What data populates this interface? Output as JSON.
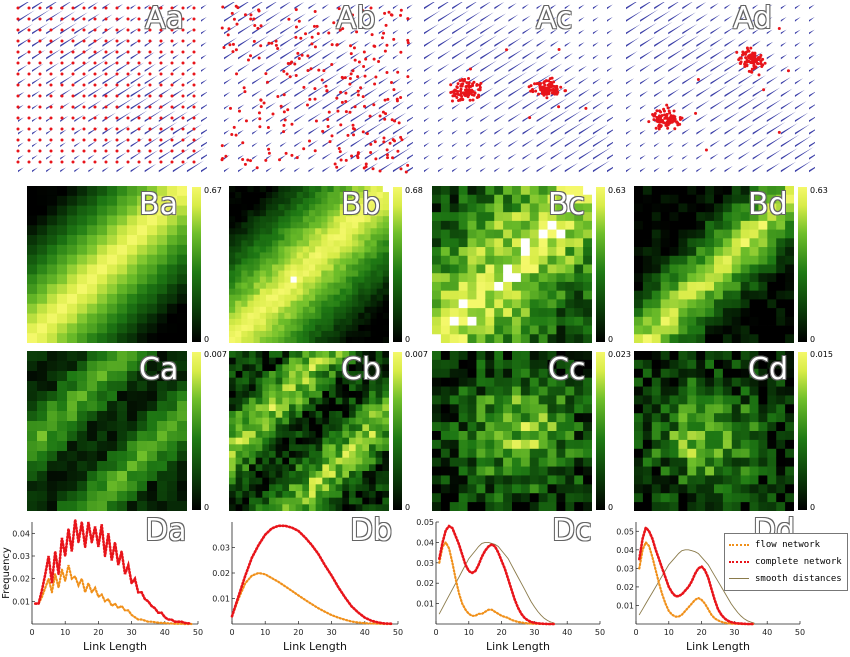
{
  "panel_labels": {
    "row_a": [
      "Aa",
      "Ab",
      "Ac",
      "Ad"
    ],
    "row_b": [
      "Ba",
      "Bb",
      "Bc",
      "Bd"
    ],
    "row_c": [
      "Ca",
      "Cb",
      "Cc",
      "Cd"
    ],
    "row_d": [
      "Da",
      "Db",
      "Dc",
      "Dd"
    ]
  },
  "colorbars": {
    "row_b": [
      {
        "max": "0.67",
        "min": "0"
      },
      {
        "max": "0.68",
        "min": "0"
      },
      {
        "max": "0.63",
        "min": "0"
      },
      {
        "max": "0.63",
        "min": "0"
      }
    ],
    "row_c": [
      {
        "max": "0.007",
        "min": "0"
      },
      {
        "max": "0.007",
        "min": "0"
      },
      {
        "max": "0.023",
        "min": "0"
      },
      {
        "max": "0.015",
        "min": "0"
      }
    ]
  },
  "colors": {
    "arrows": "#3b3fa8",
    "points": "#e8141a",
    "flow": "#f0901a",
    "complete": "#e8141a",
    "smooth": "#8a7a4a",
    "heat_low": "#000000",
    "heat_high": "#f4f86a"
  },
  "legend": {
    "flow": "flow network",
    "complete": "complete network",
    "smooth": "smooth distances"
  },
  "chart_data": [
    {
      "type": "line",
      "panel": "Da",
      "xlabel": "Link Length",
      "ylabel": "Frequency",
      "xlim": [
        0,
        50
      ],
      "ylim": [
        0,
        0.045
      ],
      "xticks": [
        "0",
        "10",
        "20",
        "30",
        "40",
        "50"
      ],
      "yticks": [
        "0.01",
        "0.02",
        "0.03",
        "0.04"
      ],
      "x": [
        1,
        2,
        3,
        4,
        5,
        6,
        7,
        8,
        9,
        10,
        11,
        12,
        13,
        14,
        15,
        16,
        17,
        18,
        19,
        20,
        21,
        22,
        23,
        24,
        25,
        26,
        27,
        28,
        29,
        30,
        31,
        32,
        33,
        34,
        35,
        36,
        37,
        38,
        39,
        40,
        41,
        42,
        43,
        44,
        45,
        46,
        47,
        48
      ],
      "series": [
        {
          "name": "complete network",
          "values": [
            0.009,
            0.009,
            0.015,
            0.022,
            0.03,
            0.018,
            0.032,
            0.022,
            0.038,
            0.03,
            0.042,
            0.032,
            0.046,
            0.036,
            0.045,
            0.034,
            0.045,
            0.036,
            0.043,
            0.034,
            0.044,
            0.03,
            0.04,
            0.028,
            0.036,
            0.026,
            0.032,
            0.022,
            0.026,
            0.018,
            0.02,
            0.014,
            0.014,
            0.011,
            0.01,
            0.008,
            0.007,
            0.005,
            0.005,
            0.003,
            0.002,
            0.002,
            0.001,
            0.001,
            0.001,
            0.0005,
            0.0003,
            0.0002
          ]
        },
        {
          "name": "flow network",
          "values": [
            0.009,
            0.009,
            0.012,
            0.016,
            0.02,
            0.014,
            0.022,
            0.016,
            0.024,
            0.019,
            0.026,
            0.02,
            0.021,
            0.017,
            0.02,
            0.014,
            0.018,
            0.014,
            0.016,
            0.012,
            0.013,
            0.01,
            0.011,
            0.008,
            0.009,
            0.007,
            0.008,
            0.006,
            0.006,
            0.004,
            0.003,
            0.002,
            0.002,
            0.0015,
            0.001,
            0.001,
            0.0008,
            0.0006,
            0.0005,
            0.0004,
            0.0003,
            0.0002,
            0.0001,
            0.0001,
            0.0001,
            0.0,
            0.0,
            0.0
          ]
        }
      ]
    },
    {
      "type": "line",
      "panel": "Db",
      "xlabel": "Link Length",
      "ylabel": "",
      "xlim": [
        0,
        50
      ],
      "ylim": [
        0,
        0.04
      ],
      "xticks": [
        "0",
        "10",
        "20",
        "30",
        "40",
        "50"
      ],
      "yticks": [
        "0.01",
        "0.02",
        "0.03"
      ],
      "x": [
        0,
        2,
        4,
        6,
        8,
        10,
        12,
        14,
        16,
        18,
        20,
        22,
        24,
        26,
        28,
        30,
        32,
        34,
        36,
        38,
        40,
        42,
        44,
        46,
        48
      ],
      "series": [
        {
          "name": "complete network",
          "values": [
            0.003,
            0.011,
            0.019,
            0.026,
            0.031,
            0.035,
            0.0375,
            0.0385,
            0.0385,
            0.0378,
            0.0365,
            0.034,
            0.031,
            0.0275,
            0.023,
            0.019,
            0.0145,
            0.0105,
            0.007,
            0.0045,
            0.0025,
            0.0013,
            0.0006,
            0.0002,
            0.0001
          ]
        },
        {
          "name": "flow network",
          "values": [
            0.003,
            0.01,
            0.016,
            0.019,
            0.02,
            0.0195,
            0.018,
            0.0165,
            0.0148,
            0.013,
            0.0112,
            0.0095,
            0.0078,
            0.0062,
            0.0048,
            0.0035,
            0.0025,
            0.0017,
            0.001,
            0.0006,
            0.0003,
            0.0002,
            0.0001,
            0.0,
            0.0
          ]
        }
      ]
    },
    {
      "type": "line",
      "panel": "Dc",
      "xlabel": "Link Length",
      "ylabel": "",
      "xlim": [
        0,
        50
      ],
      "ylim": [
        0,
        0.05
      ],
      "xticks": [
        "0",
        "10",
        "20",
        "30",
        "40",
        "50"
      ],
      "yticks": [
        "0.01",
        "0.02",
        "0.03",
        "0.04",
        "0.05"
      ],
      "x": [
        1,
        2,
        3,
        4,
        5,
        6,
        7,
        8,
        9,
        10,
        11,
        12,
        13,
        14,
        15,
        16,
        17,
        18,
        19,
        20,
        21,
        22,
        23,
        24,
        25,
        26,
        27,
        28,
        29,
        30,
        31,
        32,
        33,
        34,
        35,
        36
      ],
      "series": [
        {
          "name": "complete network",
          "values": [
            0.032,
            0.04,
            0.046,
            0.048,
            0.047,
            0.043,
            0.039,
            0.034,
            0.029,
            0.026,
            0.025,
            0.026,
            0.029,
            0.033,
            0.036,
            0.038,
            0.039,
            0.038,
            0.035,
            0.031,
            0.027,
            0.022,
            0.017,
            0.012,
            0.008,
            0.005,
            0.003,
            0.0018,
            0.001,
            0.0006,
            0.0003,
            0.0002,
            0.0001,
            0.0,
            0.0,
            0.0
          ]
        },
        {
          "name": "flow network",
          "values": [
            0.03,
            0.038,
            0.04,
            0.037,
            0.03,
            0.022,
            0.015,
            0.01,
            0.007,
            0.005,
            0.004,
            0.004,
            0.005,
            0.005,
            0.006,
            0.007,
            0.007,
            0.006,
            0.005,
            0.004,
            0.0035,
            0.003,
            0.002,
            0.0015,
            0.001,
            0.0008,
            0.0005,
            0.0003,
            0.0002,
            0.0001,
            0.0001,
            0.0,
            0.0,
            0.0,
            0.0,
            0.0
          ]
        },
        {
          "name": "smooth distances",
          "values": [
            0.005,
            0.008,
            0.011,
            0.014,
            0.017,
            0.02,
            0.023,
            0.026,
            0.029,
            0.032,
            0.034,
            0.036,
            0.038,
            0.0395,
            0.04,
            0.04,
            0.0395,
            0.039,
            0.038,
            0.036,
            0.034,
            0.032,
            0.029,
            0.026,
            0.023,
            0.02,
            0.017,
            0.014,
            0.011,
            0.0085,
            0.0062,
            0.0043,
            0.0028,
            0.0017,
            0.001,
            0.0005
          ]
        }
      ]
    },
    {
      "type": "line",
      "panel": "Dd",
      "xlabel": "Link Length",
      "ylabel": "",
      "xlim": [
        0,
        50
      ],
      "ylim": [
        0,
        0.055
      ],
      "xticks": [
        "0",
        "10",
        "20",
        "30",
        "40",
        "50"
      ],
      "yticks": [
        "0.01",
        "0.02",
        "0.03",
        "0.04",
        "0.05"
      ],
      "x": [
        1,
        2,
        3,
        4,
        5,
        6,
        7,
        8,
        9,
        10,
        11,
        12,
        13,
        14,
        15,
        16,
        17,
        18,
        19,
        20,
        21,
        22,
        23,
        24,
        25,
        26,
        27,
        28,
        29,
        30,
        31,
        32,
        33,
        34,
        35,
        36
      ],
      "series": [
        {
          "name": "complete network",
          "values": [
            0.035,
            0.046,
            0.052,
            0.05,
            0.046,
            0.04,
            0.035,
            0.03,
            0.025,
            0.02,
            0.017,
            0.015,
            0.015,
            0.016,
            0.018,
            0.02,
            0.023,
            0.027,
            0.03,
            0.031,
            0.029,
            0.025,
            0.019,
            0.013,
            0.008,
            0.005,
            0.003,
            0.0018,
            0.001,
            0.0006,
            0.0003,
            0.0002,
            0.0001,
            0.0,
            0.0,
            0.0
          ]
        },
        {
          "name": "flow network",
          "values": [
            0.03,
            0.04,
            0.044,
            0.042,
            0.036,
            0.029,
            0.022,
            0.016,
            0.011,
            0.007,
            0.005,
            0.004,
            0.004,
            0.005,
            0.007,
            0.009,
            0.011,
            0.013,
            0.014,
            0.013,
            0.011,
            0.008,
            0.005,
            0.003,
            0.002,
            0.0012,
            0.0007,
            0.0004,
            0.0002,
            0.0001,
            0.0001,
            0.0,
            0.0,
            0.0,
            0.0,
            0.0
          ]
        },
        {
          "name": "smooth distances",
          "values": [
            0.005,
            0.008,
            0.011,
            0.014,
            0.017,
            0.02,
            0.023,
            0.026,
            0.029,
            0.032,
            0.034,
            0.036,
            0.038,
            0.0395,
            0.04,
            0.04,
            0.0395,
            0.039,
            0.038,
            0.036,
            0.034,
            0.032,
            0.029,
            0.026,
            0.023,
            0.02,
            0.017,
            0.014,
            0.011,
            0.0085,
            0.0062,
            0.0043,
            0.0028,
            0.0017,
            0.001,
            0.0005
          ]
        }
      ]
    }
  ]
}
